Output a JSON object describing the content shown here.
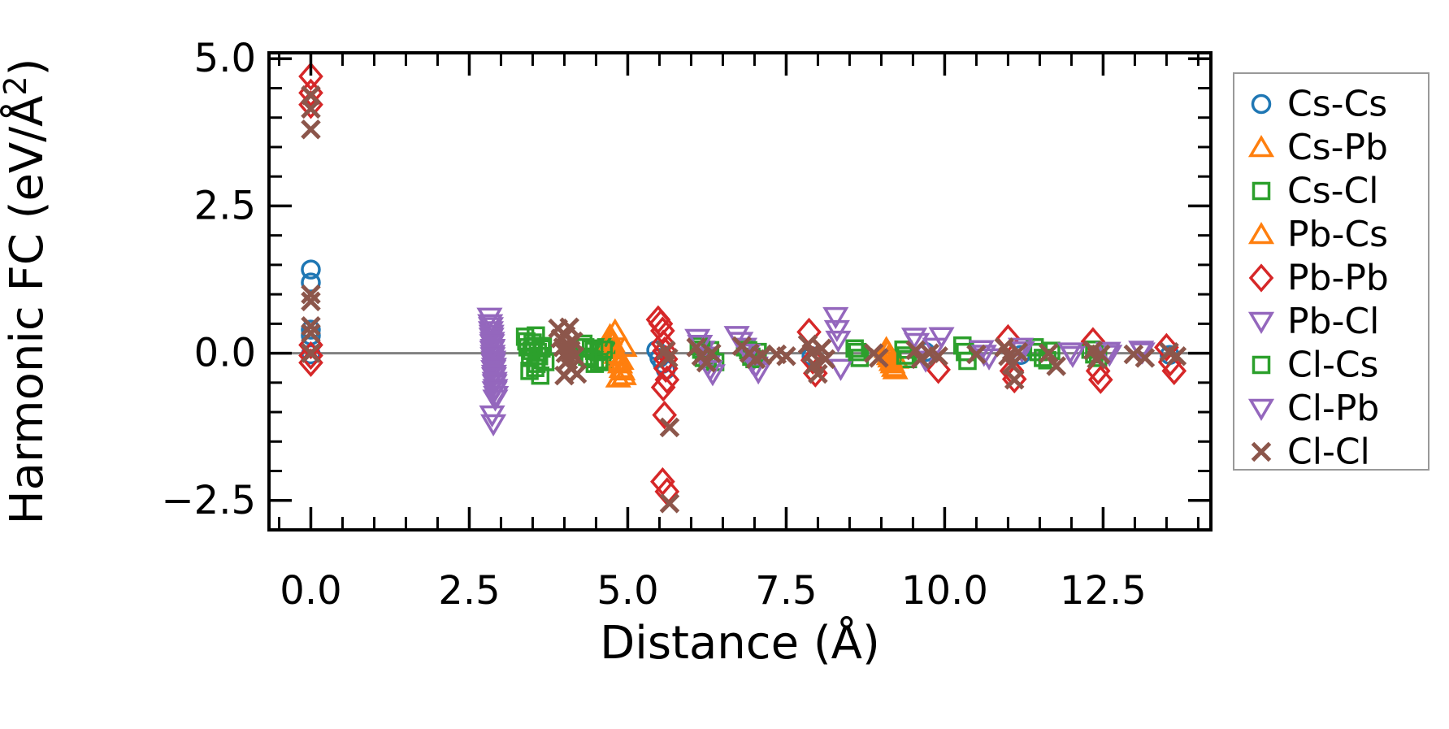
{
  "figure": {
    "background": "#ffffff",
    "axis_color": "#000000",
    "zero_line_color": "#808080",
    "legend_border_color": "#999999"
  },
  "chart_data": {
    "type": "scatter",
    "title": "",
    "xlabel": "Distance (Å)",
    "ylabel": "Harmonic FC (eV/Å²)",
    "ylabel_parts": {
      "base": "Harmonic FC (eV/Å",
      "sup": "2",
      "end": ")"
    },
    "xlim": [
      -0.66,
      14.2
    ],
    "ylim": [
      -3.0,
      5.1
    ],
    "grid": false,
    "legend_position": "outside-right",
    "zero_line_y": 0,
    "minor_tick_step": 0.5,
    "x_ticks": [
      {
        "v": 0,
        "label": "0.0"
      },
      {
        "v": 2.5,
        "label": "2.5"
      },
      {
        "v": 5,
        "label": "5.0"
      },
      {
        "v": 7.5,
        "label": "7.5"
      },
      {
        "v": 10,
        "label": "10.0"
      },
      {
        "v": 12.5,
        "label": "12.5"
      }
    ],
    "y_ticks": [
      {
        "v": 5,
        "label": "5.0"
      },
      {
        "v": 2.5,
        "label": "2.5"
      },
      {
        "v": 0,
        "label": "0.0"
      },
      {
        "v": -2.5,
        "label": "−2.5"
      }
    ],
    "series": [
      {
        "name": "Cs-Cs",
        "marker": "circle",
        "color": "#1f77b4",
        "points": [
          [
            0.0,
            1.42
          ],
          [
            0.0,
            1.2
          ],
          [
            0.0,
            0.4
          ],
          [
            0.0,
            0.3
          ],
          [
            0.0,
            -0.02
          ],
          [
            5.45,
            0.05
          ],
          [
            5.5,
            -0.08
          ],
          [
            5.55,
            -0.18
          ],
          [
            5.6,
            -0.28
          ],
          [
            7.9,
            -0.05
          ],
          [
            9.7,
            0.02
          ],
          [
            11.2,
            -0.03
          ],
          [
            13.55,
            -0.03
          ]
        ]
      },
      {
        "name": "Cs-Pb",
        "marker": "triangle-up",
        "color": "#ff7f0e",
        "points": [
          [
            4.72,
            0.3
          ],
          [
            4.76,
            0.18
          ],
          [
            4.8,
            0.06
          ],
          [
            4.84,
            -0.06
          ],
          [
            4.88,
            -0.18
          ],
          [
            4.92,
            -0.3
          ],
          [
            4.8,
            0.38
          ],
          [
            4.85,
            -0.42
          ],
          [
            4.95,
            0.1
          ],
          [
            4.9,
            -0.12
          ],
          [
            9.08,
            0.08
          ],
          [
            9.12,
            -0.04
          ],
          [
            9.16,
            -0.14
          ],
          [
            9.2,
            -0.24
          ],
          [
            9.24,
            -0.1
          ]
        ]
      },
      {
        "name": "Cs-Cl",
        "marker": "square",
        "color": "#2ca02c",
        "points": [
          [
            3.38,
            0.28
          ],
          [
            3.42,
            0.1
          ],
          [
            3.46,
            -0.08
          ],
          [
            3.5,
            0.18
          ],
          [
            3.54,
            -0.25
          ],
          [
            3.58,
            0.02
          ],
          [
            3.62,
            -0.38
          ],
          [
            3.66,
            0.12
          ],
          [
            3.7,
            -0.15
          ],
          [
            3.45,
            -0.3
          ],
          [
            3.55,
            0.3
          ],
          [
            4.3,
            0.16
          ],
          [
            4.36,
            -0.06
          ],
          [
            4.42,
            0.08
          ],
          [
            4.48,
            -0.18
          ],
          [
            4.54,
            0.02
          ],
          [
            4.6,
            -0.12
          ],
          [
            4.66,
            0.1
          ],
          [
            6.12,
            0.12
          ],
          [
            6.2,
            -0.08
          ],
          [
            6.3,
            0.05
          ],
          [
            6.38,
            -0.15
          ],
          [
            6.85,
            0.1
          ],
          [
            6.95,
            -0.06
          ],
          [
            7.05,
            0.02
          ],
          [
            8.58,
            0.08
          ],
          [
            8.66,
            -0.08
          ],
          [
            9.35,
            0.06
          ],
          [
            9.42,
            -0.1
          ],
          [
            10.28,
            0.13
          ],
          [
            10.36,
            -0.13
          ],
          [
            11.42,
            0.1
          ],
          [
            11.55,
            -0.08
          ],
          [
            11.68,
            0.04
          ],
          [
            12.3,
            0.06
          ],
          [
            12.42,
            -0.08
          ]
        ]
      },
      {
        "name": "Pb-Cs",
        "marker": "triangle-up",
        "color": "#ff7f0e",
        "points": [
          [
            4.74,
            0.22
          ],
          [
            4.78,
            0.1
          ],
          [
            4.82,
            -0.02
          ],
          [
            4.86,
            -0.14
          ],
          [
            4.9,
            -0.26
          ],
          [
            4.94,
            -0.38
          ],
          [
            9.1,
            0.04
          ],
          [
            9.14,
            -0.08
          ],
          [
            9.18,
            -0.18
          ],
          [
            9.22,
            -0.28
          ]
        ]
      },
      {
        "name": "Pb-Pb",
        "marker": "diamond",
        "color": "#d62728",
        "points": [
          [
            0.0,
            4.7
          ],
          [
            0.0,
            4.42
          ],
          [
            0.0,
            4.22
          ],
          [
            0.0,
            0.14
          ],
          [
            0.0,
            -0.04
          ],
          [
            0.0,
            -0.16
          ],
          [
            5.48,
            0.57
          ],
          [
            5.52,
            0.5
          ],
          [
            5.55,
            0.38
          ],
          [
            5.56,
            0.16
          ],
          [
            5.58,
            0.04
          ],
          [
            5.6,
            -0.1
          ],
          [
            5.6,
            -0.26
          ],
          [
            5.62,
            -0.45
          ],
          [
            5.56,
            -0.58
          ],
          [
            5.58,
            -1.05
          ],
          [
            5.55,
            -2.18
          ],
          [
            5.62,
            -2.35
          ],
          [
            7.86,
            0.36
          ],
          [
            7.92,
            -0.12
          ],
          [
            7.96,
            -0.34
          ],
          [
            9.9,
            -0.28
          ],
          [
            11.0,
            0.25
          ],
          [
            11.06,
            -0.3
          ],
          [
            11.1,
            -0.44
          ],
          [
            12.34,
            0.2
          ],
          [
            12.42,
            -0.3
          ],
          [
            12.46,
            -0.45
          ],
          [
            13.5,
            0.1
          ],
          [
            13.56,
            -0.15
          ],
          [
            13.62,
            -0.3
          ]
        ]
      },
      {
        "name": "Pb-Cl",
        "marker": "triangle-down",
        "color": "#9467bd",
        "points": [
          [
            2.82,
            0.61
          ],
          [
            2.83,
            0.5
          ],
          [
            2.84,
            0.38
          ],
          [
            2.85,
            0.27
          ],
          [
            2.86,
            0.16
          ],
          [
            2.86,
            0.05
          ],
          [
            2.87,
            -0.06
          ],
          [
            2.88,
            -0.17
          ],
          [
            2.88,
            -0.28
          ],
          [
            2.89,
            -0.4
          ],
          [
            2.9,
            -0.52
          ],
          [
            2.9,
            -0.64
          ],
          [
            2.91,
            -0.78
          ],
          [
            2.86,
            -1.05
          ],
          [
            2.88,
            -1.2
          ],
          [
            6.1,
            0.25
          ],
          [
            6.18,
            0.05
          ],
          [
            6.26,
            -0.2
          ],
          [
            6.34,
            -0.35
          ],
          [
            6.72,
            0.3
          ],
          [
            6.84,
            0.1
          ],
          [
            6.96,
            -0.15
          ],
          [
            7.06,
            -0.32
          ],
          [
            8.28,
            0.62
          ],
          [
            8.32,
            0.22
          ],
          [
            8.36,
            -0.26
          ],
          [
            9.52,
            0.27
          ],
          [
            9.95,
            0.28
          ],
          [
            9.7,
            -0.12
          ],
          [
            10.58,
            0.06
          ],
          [
            10.7,
            -0.08
          ],
          [
            11.2,
            0.1
          ],
          [
            11.98,
            0.02
          ],
          [
            12.6,
            -0.02
          ],
          [
            13.1,
            0.05
          ]
        ]
      },
      {
        "name": "Cl-Cs",
        "marker": "square",
        "color": "#2ca02c",
        "points": [
          [
            3.4,
            0.2
          ],
          [
            3.48,
            0.04
          ],
          [
            3.56,
            -0.18
          ],
          [
            3.64,
            0.08
          ],
          [
            3.52,
            0.12
          ],
          [
            3.6,
            -0.05
          ],
          [
            4.33,
            0.1
          ],
          [
            4.4,
            -0.1
          ],
          [
            4.47,
            0.04
          ],
          [
            4.55,
            -0.15
          ],
          [
            4.62,
            0.06
          ],
          [
            6.16,
            0.06
          ],
          [
            6.26,
            -0.1
          ],
          [
            6.9,
            0.05
          ],
          [
            7.0,
            -0.1
          ],
          [
            8.62,
            0.02
          ],
          [
            9.38,
            -0.04
          ],
          [
            10.32,
            0.02
          ],
          [
            11.48,
            0.02
          ],
          [
            11.62,
            -0.12
          ],
          [
            12.36,
            -0.02
          ]
        ]
      },
      {
        "name": "Cl-Pb",
        "marker": "triangle-down",
        "color": "#9467bd",
        "points": [
          [
            2.84,
            0.45
          ],
          [
            2.85,
            0.32
          ],
          [
            2.86,
            0.2
          ],
          [
            2.87,
            0.08
          ],
          [
            2.87,
            -0.02
          ],
          [
            2.88,
            -0.12
          ],
          [
            2.89,
            -0.24
          ],
          [
            2.89,
            -0.36
          ],
          [
            2.9,
            -0.48
          ],
          [
            2.91,
            -0.6
          ],
          [
            2.92,
            -0.72
          ],
          [
            6.14,
            0.15
          ],
          [
            6.22,
            -0.05
          ],
          [
            6.3,
            -0.28
          ],
          [
            6.78,
            0.2
          ],
          [
            6.9,
            0.0
          ],
          [
            7.02,
            -0.22
          ],
          [
            8.3,
            0.4
          ],
          [
            9.56,
            0.18
          ],
          [
            9.85,
            0.1
          ],
          [
            10.62,
            -0.02
          ],
          [
            11.22,
            0.04
          ],
          [
            12.02,
            -0.04
          ],
          [
            12.58,
            0.03
          ],
          [
            13.12,
            0.02
          ]
        ]
      },
      {
        "name": "Cl-Cl",
        "marker": "x",
        "color": "#8c564b",
        "points": [
          [
            0.0,
            4.38
          ],
          [
            0.0,
            4.15
          ],
          [
            0.0,
            3.8
          ],
          [
            0.0,
            1.0
          ],
          [
            0.0,
            0.88
          ],
          [
            0.0,
            0.46
          ],
          [
            0.0,
            0.34
          ],
          [
            0.0,
            0.0
          ],
          [
            3.9,
            0.42
          ],
          [
            3.94,
            0.25
          ],
          [
            3.98,
            0.1
          ],
          [
            4.02,
            0.3
          ],
          [
            4.02,
            0.0
          ],
          [
            4.06,
            0.15
          ],
          [
            4.06,
            -0.12
          ],
          [
            4.1,
            0.05
          ],
          [
            4.1,
            -0.25
          ],
          [
            4.14,
            0.2
          ],
          [
            4.16,
            -0.05
          ],
          [
            4.2,
            -0.35
          ],
          [
            4.08,
            0.44
          ],
          [
            4.0,
            -0.38
          ],
          [
            5.6,
            0.05
          ],
          [
            5.64,
            -0.08
          ],
          [
            5.66,
            -1.26
          ],
          [
            5.66,
            -2.55
          ],
          [
            6.08,
            0.1
          ],
          [
            6.16,
            -0.05
          ],
          [
            6.24,
            -0.16
          ],
          [
            6.32,
            0.0
          ],
          [
            6.8,
            0.12
          ],
          [
            6.92,
            0.0
          ],
          [
            7.02,
            -0.1
          ],
          [
            7.12,
            -0.04
          ],
          [
            7.35,
            -0.02
          ],
          [
            7.5,
            -0.05
          ],
          [
            7.84,
            0.15
          ],
          [
            7.9,
            0.0
          ],
          [
            7.94,
            -0.2
          ],
          [
            8.0,
            -0.35
          ],
          [
            8.06,
            0.08
          ],
          [
            8.12,
            -0.1
          ],
          [
            8.88,
            0.0
          ],
          [
            8.96,
            -0.08
          ],
          [
            9.54,
            0.05
          ],
          [
            9.62,
            -0.1
          ],
          [
            9.76,
            0.0
          ],
          [
            9.9,
            -0.05
          ],
          [
            10.5,
            -0.02
          ],
          [
            10.94,
            0.1
          ],
          [
            11.0,
            -0.05
          ],
          [
            11.06,
            -0.2
          ],
          [
            11.1,
            -0.45
          ],
          [
            11.16,
            0.02
          ],
          [
            11.64,
            0.0
          ],
          [
            11.76,
            -0.22
          ],
          [
            12.34,
            0.05
          ],
          [
            12.4,
            -0.1
          ],
          [
            12.46,
            -0.02
          ],
          [
            12.98,
            -0.02
          ],
          [
            13.16,
            -0.08
          ],
          [
            13.54,
            0.02
          ],
          [
            13.66,
            -0.05
          ]
        ]
      }
    ]
  }
}
